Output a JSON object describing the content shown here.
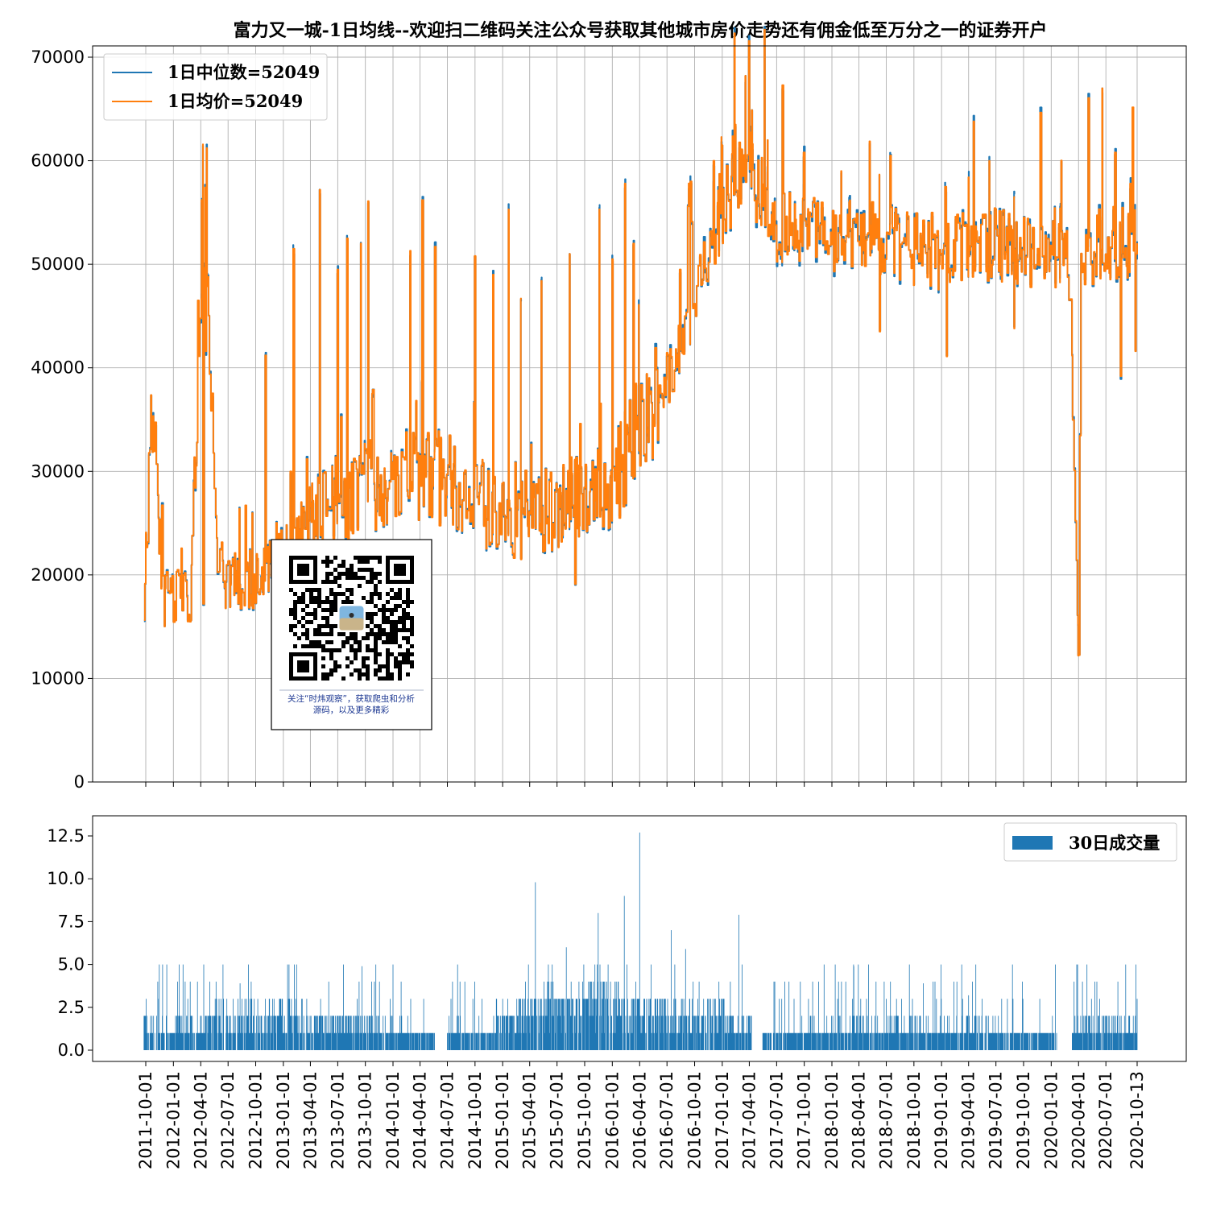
{
  "chart_data": [
    {
      "type": "line",
      "title": "富力又一城-1日均线--欢迎扫二维码关注公众号获取其他城市房价走势还有佣金低至万分之一的证券开户",
      "ylim": [
        0,
        70000
      ],
      "yticks": [
        "0",
        "10000",
        "20000",
        "30000",
        "40000",
        "50000",
        "60000",
        "70000"
      ],
      "grid": true,
      "legend_position": "top-left",
      "x_start": "2011-09-25",
      "x_end": "2020-10-13",
      "series": [
        {
          "name": "1日中位数=52049",
          "color": "#1f77b4",
          "keypoints": [
            [
              "2011-09-25",
              18600
            ],
            [
              "2011-10-20",
              36200
            ],
            [
              "2011-12-01",
              17800
            ],
            [
              "2012-01-10",
              17600
            ],
            [
              "2012-03-01",
              18500
            ],
            [
              "2012-04-05",
              56200
            ],
            [
              "2012-06-01",
              20000
            ],
            [
              "2012-09-10",
              19800
            ],
            [
              "2012-12-01",
              20500
            ],
            [
              "2013-03-01",
              24000
            ],
            [
              "2013-06-01",
              27500
            ],
            [
              "2013-08-10",
              26500
            ],
            [
              "2013-10-01",
              29000
            ],
            [
              "2014-01-01",
              28000
            ],
            [
              "2014-03-10",
              30500
            ],
            [
              "2014-05-01",
              29000
            ],
            [
              "2014-07-01",
              29800
            ],
            [
              "2014-10-01",
              27500
            ],
            [
              "2015-01-01",
              25500
            ],
            [
              "2015-04-01",
              25000
            ],
            [
              "2015-07-01",
              26500
            ],
            [
              "2015-10-01",
              28000
            ],
            [
              "2016-01-01",
              28500
            ],
            [
              "2016-04-01",
              35000
            ],
            [
              "2016-07-01",
              39000
            ],
            [
              "2016-09-01",
              43000
            ],
            [
              "2016-10-15",
              48000
            ],
            [
              "2017-01-01",
              55000
            ],
            [
              "2017-03-20",
              60000
            ],
            [
              "2017-07-01",
              53500
            ],
            [
              "2017-10-01",
              54000
            ],
            [
              "2018-01-01",
              52000
            ],
            [
              "2018-04-01",
              53000
            ],
            [
              "2018-07-01",
              52000
            ],
            [
              "2018-10-01",
              51500
            ],
            [
              "2019-01-01",
              51000
            ],
            [
              "2019-04-01",
              51500
            ],
            [
              "2019-07-01",
              52000
            ],
            [
              "2019-10-01",
              51000
            ],
            [
              "2020-01-01",
              51500
            ],
            [
              "2020-03-01",
              50000
            ],
            [
              "2020-04-01",
              12200
            ],
            [
              "2020-04-08",
              51000
            ],
            [
              "2020-07-01",
              52000
            ],
            [
              "2020-10-13",
              52049
            ]
          ],
          "spikes": [
            [
              "2012-04-05",
              56200
            ],
            [
              "2012-04-25",
              48800
            ],
            [
              "2012-11-01",
              41200
            ],
            [
              "2013-02-01",
              51500
            ],
            [
              "2013-05-01",
              57200
            ],
            [
              "2013-07-01",
              49500
            ],
            [
              "2013-08-01",
              52500
            ],
            [
              "2013-09-15",
              52000
            ],
            [
              "2013-10-10",
              56100
            ],
            [
              "2014-03-01",
              51300
            ],
            [
              "2014-04-10",
              56200
            ],
            [
              "2014-05-20",
              51700
            ],
            [
              "2014-10-01",
              50800
            ],
            [
              "2014-12-01",
              49000
            ],
            [
              "2015-01-20",
              55300
            ],
            [
              "2015-03-01",
              46700
            ],
            [
              "2015-05-10",
              48400
            ],
            [
              "2015-08-10",
              51000
            ],
            [
              "2015-11-20",
              55300
            ],
            [
              "2016-01-01",
              50500
            ],
            [
              "2016-02-10",
              57800
            ],
            [
              "2016-03-10",
              52000
            ],
            [
              "2016-09-15",
              58000
            ],
            [
              "2016-12-01",
              60000
            ],
            [
              "2017-01-01",
              61500
            ],
            [
              "2017-02-15",
              63500
            ],
            [
              "2017-03-20",
              68200
            ],
            [
              "2017-06-01",
              62000
            ],
            [
              "2017-07-20",
              67300
            ],
            [
              "2017-10-01",
              60800
            ],
            [
              "2018-02-01",
              59000
            ],
            [
              "2018-07-15",
              60500
            ],
            [
              "2018-12-01",
              55000
            ],
            [
              "2019-01-15",
              57500
            ],
            [
              "2019-04-01",
              58400
            ],
            [
              "2019-06-10",
              60000
            ],
            [
              "2019-09-01",
              56500
            ],
            [
              "2020-02-01",
              55400
            ],
            [
              "2020-06-20",
              67000
            ],
            [
              "2020-08-01",
              60800
            ],
            [
              "2020-09-20",
              57800
            ]
          ],
          "dips": [
            [
              "2012-01-05",
              15600
            ],
            [
              "2012-04-10",
              17200
            ],
            [
              "2015-03-01",
              21500
            ],
            [
              "2015-09-01",
              19100
            ],
            [
              "2016-04-01",
              32000
            ],
            [
              "2018-06-10",
              43500
            ],
            [
              "2019-01-20",
              41100
            ],
            [
              "2019-09-01",
              43800
            ],
            [
              "2020-04-01",
              12200
            ],
            [
              "2020-08-20",
              39200
            ],
            [
              "2020-10-05",
              41600
            ]
          ]
        },
        {
          "name": "1日均价=52049",
          "color": "#ff7f0e"
        }
      ]
    },
    {
      "type": "bar",
      "ylim": [
        -0.6,
        13.6
      ],
      "yticks": [
        "0.0",
        "2.5",
        "5.0",
        "7.5",
        "10.0",
        "12.5"
      ],
      "legend_position": "top-right",
      "series": [
        {
          "name": "30日成交量",
          "color": "#1f77b4",
          "activity": [
            [
              "2011-09-25",
              1.2
            ],
            [
              "2012-01-01",
              1.0
            ],
            [
              "2012-06-01",
              1.6
            ],
            [
              "2013-01-01",
              1.8
            ],
            [
              "2013-06-01",
              1.3
            ],
            [
              "2014-01-01",
              1.0
            ],
            [
              "2014-06-01",
              0.6
            ],
            [
              "2014-12-01",
              1.0
            ],
            [
              "2015-04-01",
              2.0
            ],
            [
              "2015-10-01",
              2.4
            ],
            [
              "2016-03-01",
              2.2
            ],
            [
              "2016-08-01",
              2.0
            ],
            [
              "2017-01-01",
              1.6
            ],
            [
              "2017-06-01",
              0.8
            ],
            [
              "2018-01-01",
              1.0
            ],
            [
              "2018-06-01",
              1.1
            ],
            [
              "2019-01-01",
              1.0
            ],
            [
              "2019-07-01",
              1.0
            ],
            [
              "2020-01-01",
              0.6
            ],
            [
              "2020-05-01",
              1.2
            ],
            [
              "2020-10-13",
              1.0
            ]
          ],
          "peaks": [
            [
              "2011-10-05",
              2.0
            ],
            [
              "2012-01-20",
              5.0
            ],
            [
              "2012-05-01",
              4.0
            ],
            [
              "2012-08-10",
              3.9
            ],
            [
              "2013-01-15",
              4.8
            ],
            [
              "2013-06-01",
              4.0
            ],
            [
              "2013-09-20",
              4.9
            ],
            [
              "2014-03-01",
              3.0
            ],
            [
              "2015-01-01",
              3.0
            ],
            [
              "2015-04-20",
              9.8
            ],
            [
              "2015-08-01",
              6.0
            ],
            [
              "2015-11-15",
              8.0
            ],
            [
              "2016-02-10",
              9.0
            ],
            [
              "2016-04-01",
              12.7
            ],
            [
              "2016-07-15",
              7.0
            ],
            [
              "2016-09-01",
              5.9
            ],
            [
              "2017-02-25",
              7.9
            ],
            [
              "2017-07-10",
              3.0
            ],
            [
              "2017-10-15",
              3.0
            ],
            [
              "2018-03-15",
              4.9
            ],
            [
              "2018-07-01",
              3.0
            ],
            [
              "2018-11-01",
              3.9
            ],
            [
              "2019-04-01",
              3.2
            ],
            [
              "2019-07-20",
              3.0
            ],
            [
              "2020-06-01",
              4.0
            ],
            [
              "2020-08-10",
              4.0
            ],
            [
              "2020-10-13",
              3.0
            ]
          ],
          "gaps": [
            [
              "2014-05-20",
              "2014-06-30"
            ],
            [
              "2017-04-10",
              "2017-05-15"
            ],
            [
              "2020-01-20",
              "2020-03-10"
            ]
          ]
        }
      ]
    }
  ],
  "x_axis": {
    "tick_labels": [
      "2011-10-01",
      "2012-01-01",
      "2012-04-01",
      "2012-07-01",
      "2012-10-01",
      "2013-01-01",
      "2013-04-01",
      "2013-07-01",
      "2013-10-01",
      "2014-01-01",
      "2014-04-01",
      "2014-07-01",
      "2014-10-01",
      "2015-01-01",
      "2015-04-01",
      "2015-07-01",
      "2015-10-01",
      "2016-01-01",
      "2016-04-01",
      "2016-07-01",
      "2016-10-01",
      "2017-01-01",
      "2017-04-01",
      "2017-07-01",
      "2017-10-01",
      "2018-01-01",
      "2018-04-01",
      "2018-07-01",
      "2018-10-01",
      "2019-01-01",
      "2019-04-01",
      "2019-07-01",
      "2019-10-01",
      "2020-01-01",
      "2020-04-01",
      "2020-07-01",
      "2020-10-13"
    ]
  },
  "qr_box": {
    "caption_line1": "关注“时炜观察”，获取爬虫和分析",
    "caption_line2": "源码，以及更多精彩"
  }
}
